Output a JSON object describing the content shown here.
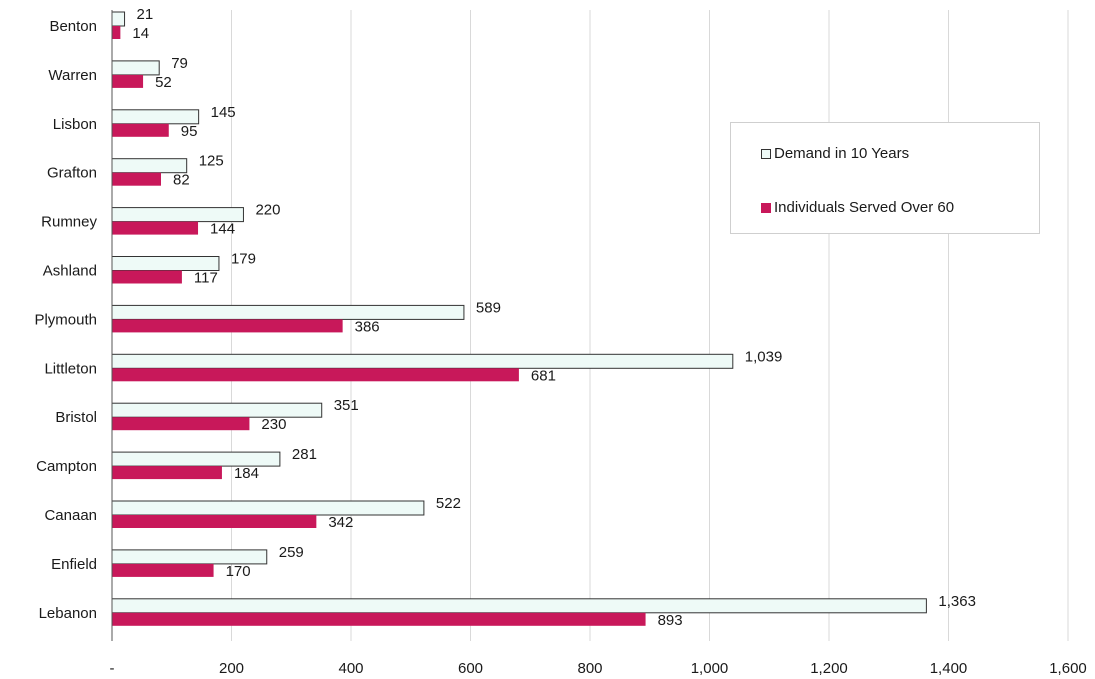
{
  "chart_data": {
    "type": "bar",
    "orientation": "horizontal",
    "title": "",
    "xlabel": "",
    "ylabel": "",
    "categories": [
      "Benton",
      "Warren",
      "Lisbon",
      "Grafton",
      "Rumney",
      "Ashland",
      "Plymouth",
      "Littleton",
      "Bristol",
      "Campton",
      "Canaan",
      "Enfield",
      "Lebanon"
    ],
    "series": [
      {
        "name": "Demand in 10 Years",
        "values": [
          21,
          79,
          145,
          125,
          220,
          179,
          589,
          1039,
          351,
          281,
          522,
          259,
          1363
        ],
        "labels": [
          "21",
          "79",
          "145",
          "125",
          "220",
          "179",
          "589",
          "1,039",
          "351",
          "281",
          "522",
          "259",
          "1,363"
        ],
        "color": "#eefaf7",
        "border": "#333333"
      },
      {
        "name": "Individuals Served Over 60",
        "values": [
          14,
          52,
          95,
          82,
          144,
          117,
          386,
          681,
          230,
          184,
          342,
          170,
          893
        ],
        "labels": [
          "14",
          "52",
          "95",
          "82",
          "144",
          "117",
          "386",
          "681",
          "230",
          "184",
          "342",
          "170",
          "893"
        ],
        "color": "#c8185a",
        "border": "#c8185a"
      }
    ],
    "xlim": [
      0,
      1600
    ],
    "x_ticks": [
      0,
      200,
      400,
      600,
      800,
      1000,
      1200,
      1400,
      1600
    ],
    "x_tick_labels": [
      "-",
      "200",
      "400",
      "600",
      "800",
      "1,000",
      "1,200",
      "1,400",
      "1,600"
    ],
    "grid": true,
    "legend_position": "right"
  }
}
